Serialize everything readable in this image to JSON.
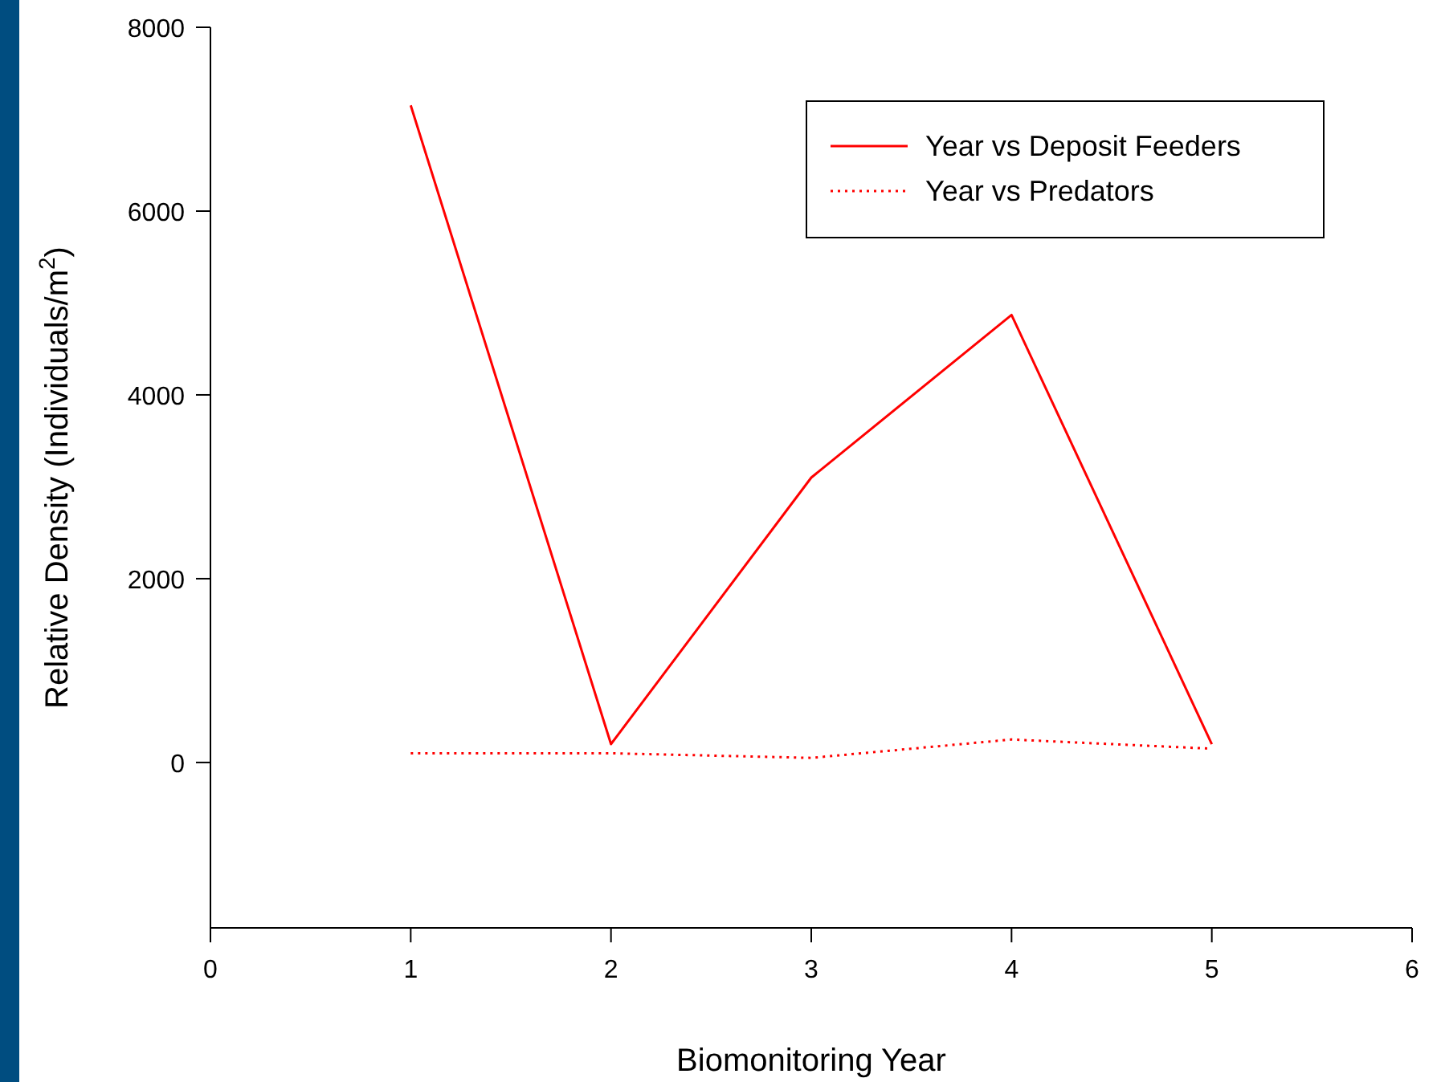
{
  "chart_data": {
    "type": "line",
    "xlabel": "Biomonitoring Year",
    "ylabel": "Relative Density (Individuals/m$^{2}$)",
    "x": [
      1,
      2,
      3,
      4,
      5
    ],
    "series": [
      {
        "name": "Year vs Deposit Feeders",
        "color": "#ff0000",
        "line_style": "solid",
        "values": [
          7150,
          200,
          3100,
          4870,
          200
        ]
      },
      {
        "name": "Year vs Predators",
        "color": "#ff0000",
        "line_style": "dotted",
        "values": [
          100,
          100,
          50,
          250,
          150
        ]
      }
    ],
    "xlim": [
      0,
      6
    ],
    "xticks": [
      0,
      1,
      2,
      3,
      4,
      5,
      6
    ],
    "ylim": [
      -1800,
      8000
    ],
    "yticks": [
      0,
      2000,
      4000,
      6000,
      8000
    ],
    "grid": false,
    "legend": "top right",
    "marker": "none"
  }
}
